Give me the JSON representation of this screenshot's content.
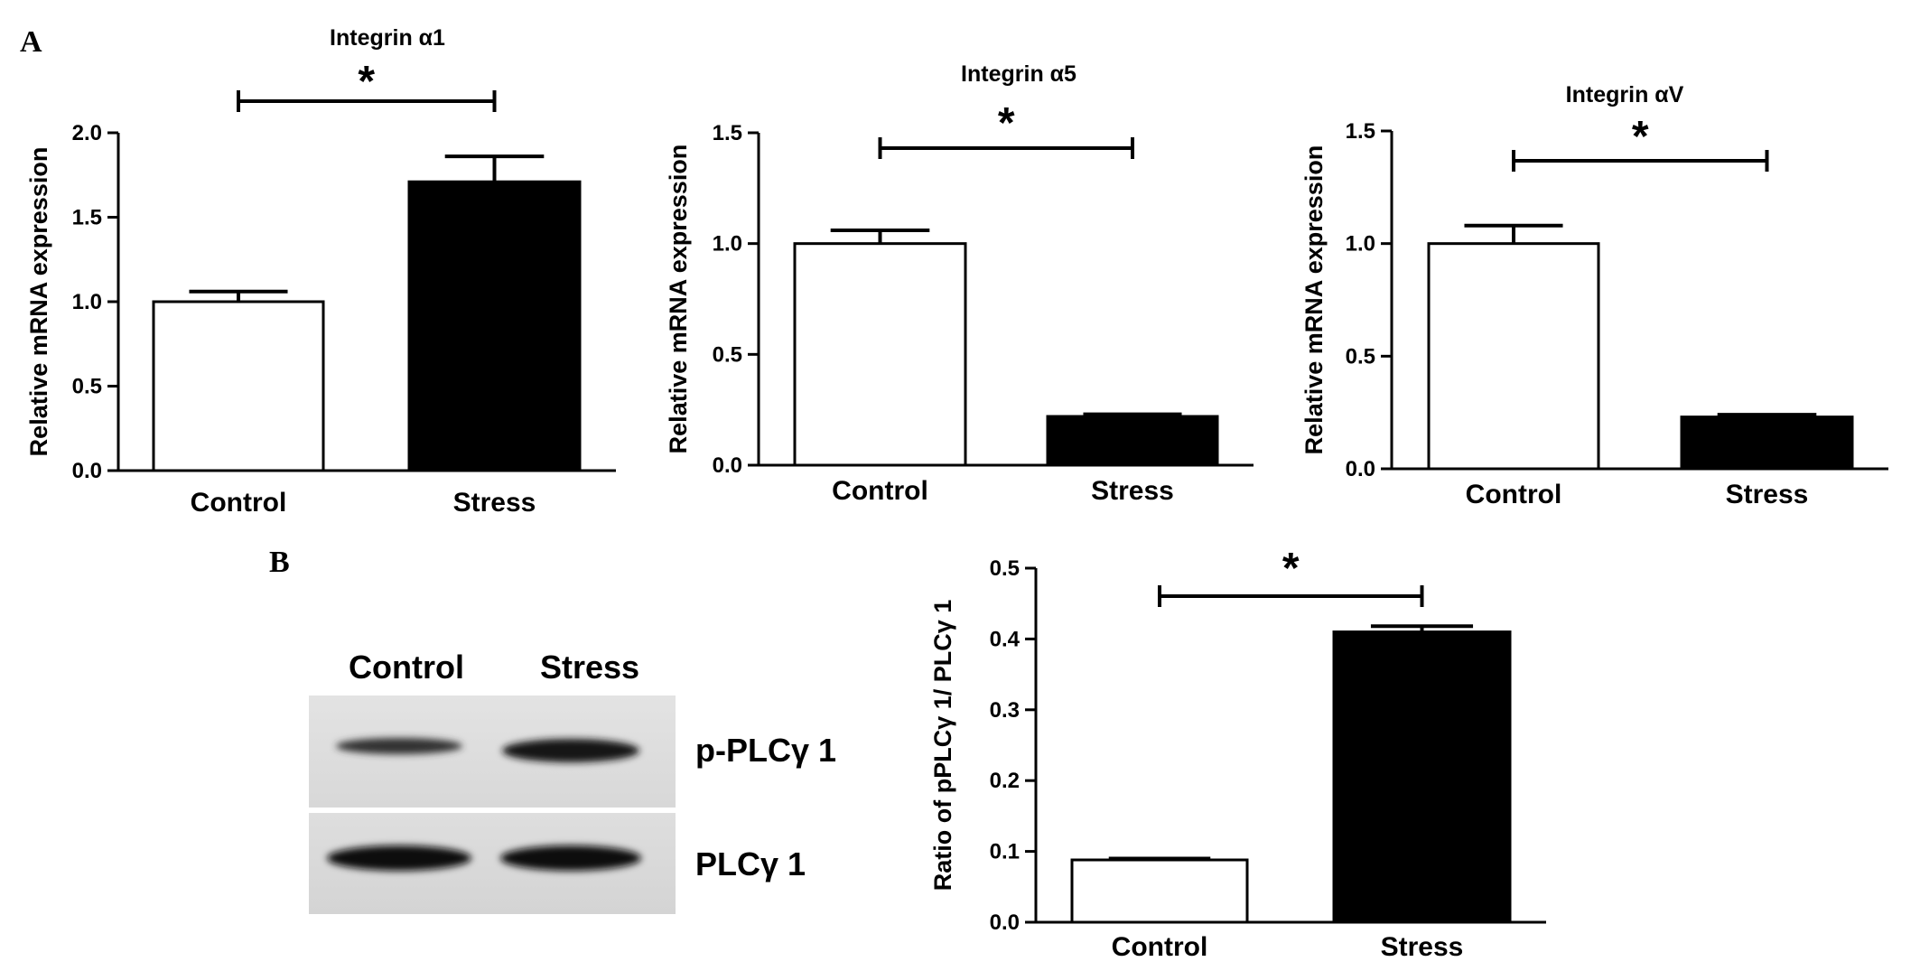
{
  "figure": {
    "panel_a_label": "A",
    "panel_b_label": "B"
  },
  "blot": {
    "lanes": [
      "Control",
      "Stress"
    ],
    "bands": [
      "p-PLCγ 1",
      "PLCγ 1"
    ]
  },
  "chart_data": [
    {
      "id": "a1",
      "type": "bar",
      "title": "Integrin α1",
      "xlabel": "",
      "ylabel": "Relative mRNA expression",
      "categories": [
        "Control",
        "Stress"
      ],
      "values": [
        1.0,
        1.71
      ],
      "errors": [
        0.06,
        0.15
      ],
      "bar_colors": [
        "#ffffff",
        "#000000"
      ],
      "ylim": [
        0,
        2.0
      ],
      "yticks": [
        0.0,
        0.5,
        1.0,
        1.5,
        2.0
      ],
      "tick_labels": [
        "0.0",
        "0.5",
        "1.0",
        "1.5",
        "2.0"
      ],
      "significance": "*",
      "grid": false
    },
    {
      "id": "a5",
      "type": "bar",
      "title": "Integrin α5",
      "xlabel": "",
      "ylabel": "Relative mRNA expression",
      "categories": [
        "Control",
        "Stress"
      ],
      "values": [
        1.0,
        0.22
      ],
      "errors": [
        0.06,
        0.01
      ],
      "bar_colors": [
        "#ffffff",
        "#000000"
      ],
      "ylim": [
        0,
        1.5
      ],
      "yticks": [
        0.0,
        0.5,
        1.0,
        1.5
      ],
      "tick_labels": [
        "0.0",
        "0.5",
        "1.0",
        "1.5"
      ],
      "significance": "*",
      "grid": false
    },
    {
      "id": "av",
      "type": "bar",
      "title": "Integrin αV",
      "xlabel": "",
      "ylabel": "Relative mRNA expression",
      "categories": [
        "Control",
        "Stress"
      ],
      "values": [
        1.0,
        0.23
      ],
      "errors": [
        0.08,
        0.01
      ],
      "bar_colors": [
        "#ffffff",
        "#000000"
      ],
      "ylim": [
        0,
        1.5
      ],
      "yticks": [
        0.0,
        0.5,
        1.0,
        1.5
      ],
      "tick_labels": [
        "0.0",
        "0.5",
        "1.0",
        "1.5"
      ],
      "significance": "*",
      "grid": false
    },
    {
      "id": "plc",
      "type": "bar",
      "title": "",
      "xlabel": "",
      "ylabel": "Ratio of pPLCγ 1/ PLCγ 1",
      "categories": [
        "Control",
        "Stress"
      ],
      "values": [
        0.088,
        0.41
      ],
      "errors": [
        0.002,
        0.008
      ],
      "bar_colors": [
        "#ffffff",
        "#000000"
      ],
      "ylim": [
        0,
        0.5
      ],
      "yticks": [
        0.0,
        0.1,
        0.2,
        0.3,
        0.4,
        0.5
      ],
      "tick_labels": [
        "0.0",
        "0.1",
        "0.2",
        "0.3",
        "0.4",
        "0.5"
      ],
      "significance": "*",
      "grid": false
    }
  ]
}
